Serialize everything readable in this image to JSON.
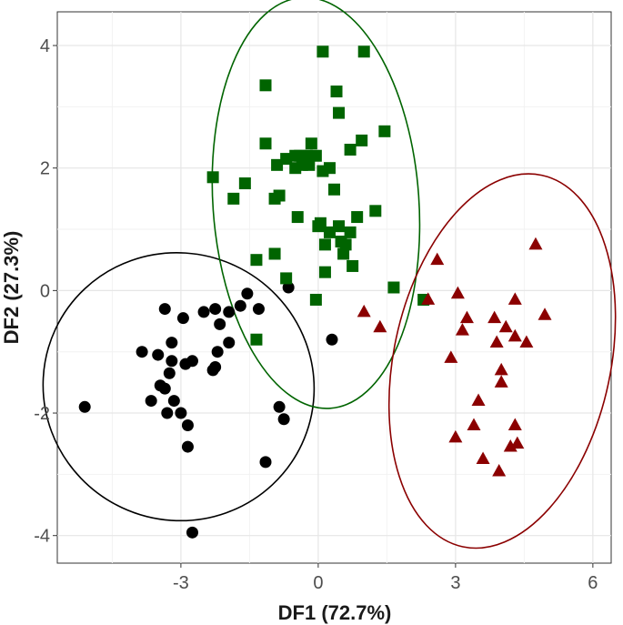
{
  "chart_data": {
    "type": "scatter",
    "xlabel": "DF1 (72.7%)",
    "ylabel": "DF2 (27.3%)",
    "xlim": [
      -5.7,
      6.4
    ],
    "ylim": [
      -4.45,
      4.55
    ],
    "x_ticks": [
      -3,
      0,
      3,
      6
    ],
    "x_tick_labels": [
      "-3",
      "0",
      "3",
      "6"
    ],
    "y_ticks": [
      -4,
      -2,
      0,
      2,
      4
    ],
    "y_tick_labels": [
      "-4",
      "-2",
      "0",
      "2",
      "4"
    ],
    "grid": true,
    "legend": "none",
    "series": [
      {
        "marker": "circle",
        "color": "#000000",
        "ellipse": {
          "cx": -3.05,
          "cy": -1.57,
          "rx": 2.97,
          "ry": 2.18,
          "angle_deg": 25
        },
        "points": [
          [
            -5.1,
            -1.9
          ],
          [
            -3.85,
            -1.0
          ],
          [
            -3.65,
            -1.8
          ],
          [
            -3.5,
            -1.05
          ],
          [
            -3.45,
            -1.55
          ],
          [
            -3.35,
            -0.3
          ],
          [
            -3.35,
            -1.6
          ],
          [
            -3.3,
            -2.0
          ],
          [
            -3.25,
            -1.35
          ],
          [
            -3.2,
            -0.85
          ],
          [
            -3.2,
            -1.15
          ],
          [
            -3.15,
            -1.8
          ],
          [
            -3.0,
            -2.0
          ],
          [
            -2.95,
            -0.45
          ],
          [
            -2.9,
            -1.2
          ],
          [
            -2.85,
            -2.55
          ],
          [
            -2.85,
            -2.2
          ],
          [
            -2.75,
            -1.15
          ],
          [
            -2.75,
            -3.95
          ],
          [
            -2.5,
            -0.35
          ],
          [
            -2.3,
            -1.3
          ],
          [
            -2.25,
            -1.25
          ],
          [
            -2.25,
            -0.3
          ],
          [
            -2.2,
            -1.0
          ],
          [
            -2.15,
            -0.55
          ],
          [
            -1.95,
            -0.35
          ],
          [
            -1.95,
            -0.85
          ],
          [
            -1.7,
            -0.25
          ],
          [
            -1.55,
            -0.05
          ],
          [
            -1.3,
            -0.3
          ],
          [
            -1.15,
            -2.8
          ],
          [
            -0.85,
            -1.9
          ],
          [
            -0.75,
            -2.1
          ],
          [
            -0.65,
            0.05
          ],
          [
            0.3,
            -0.8
          ]
        ]
      },
      {
        "marker": "square",
        "color": "#006400",
        "ellipse": {
          "cx": -0.05,
          "cy": 1.43,
          "rx": 2.25,
          "ry": 3.36,
          "angle_deg": -4
        },
        "points": [
          [
            -2.3,
            1.85
          ],
          [
            -1.85,
            1.5
          ],
          [
            -1.6,
            1.75
          ],
          [
            -1.35,
            0.5
          ],
          [
            -1.35,
            -0.8
          ],
          [
            -1.15,
            3.35
          ],
          [
            -1.15,
            2.4
          ],
          [
            -0.95,
            1.5
          ],
          [
            -0.95,
            0.6
          ],
          [
            -0.9,
            2.05
          ],
          [
            -0.85,
            1.55
          ],
          [
            -0.7,
            2.15
          ],
          [
            -0.7,
            0.2
          ],
          [
            -0.5,
            2.2
          ],
          [
            -0.5,
            2.0
          ],
          [
            -0.45,
            1.2
          ],
          [
            -0.4,
            2.2
          ],
          [
            -0.35,
            2.05
          ],
          [
            -0.3,
            2.1
          ],
          [
            -0.25,
            2.2
          ],
          [
            -0.2,
            2.05
          ],
          [
            -0.15,
            2.4
          ],
          [
            -0.05,
            2.2
          ],
          [
            -0.05,
            -0.15
          ],
          [
            0.0,
            1.05
          ],
          [
            0.05,
            1.1
          ],
          [
            0.1,
            1.95
          ],
          [
            0.1,
            3.9
          ],
          [
            0.15,
            0.75
          ],
          [
            0.15,
            0.3
          ],
          [
            0.25,
            2.0
          ],
          [
            0.25,
            0.95
          ],
          [
            0.35,
            1.65
          ],
          [
            0.4,
            3.25
          ],
          [
            0.45,
            2.9
          ],
          [
            0.45,
            1.05
          ],
          [
            0.5,
            0.8
          ],
          [
            0.55,
            0.6
          ],
          [
            0.6,
            0.75
          ],
          [
            0.7,
            0.95
          ],
          [
            0.75,
            0.4
          ],
          [
            0.7,
            2.3
          ],
          [
            0.85,
            1.2
          ],
          [
            0.95,
            2.45
          ],
          [
            1.0,
            3.9
          ],
          [
            1.25,
            1.3
          ],
          [
            1.45,
            2.6
          ],
          [
            1.65,
            0.05
          ],
          [
            2.3,
            -0.15
          ]
        ]
      },
      {
        "marker": "triangle",
        "color": "#8b0000",
        "ellipse": {
          "cx": 4.02,
          "cy": -1.15,
          "rx": 2.37,
          "ry": 3.1,
          "angle_deg": 12
        },
        "points": [
          [
            1.0,
            -0.35
          ],
          [
            1.35,
            -0.6
          ],
          [
            2.4,
            -0.15
          ],
          [
            2.6,
            0.5
          ],
          [
            2.9,
            -1.1
          ],
          [
            3.0,
            -2.4
          ],
          [
            3.05,
            -0.05
          ],
          [
            3.15,
            -0.65
          ],
          [
            3.25,
            -0.45
          ],
          [
            3.4,
            -2.2
          ],
          [
            3.5,
            -1.8
          ],
          [
            3.6,
            -2.75
          ],
          [
            3.85,
            -0.45
          ],
          [
            3.9,
            -0.85
          ],
          [
            3.95,
            -2.95
          ],
          [
            4.0,
            -1.3
          ],
          [
            4.0,
            -1.5
          ],
          [
            4.1,
            -0.6
          ],
          [
            4.2,
            -2.55
          ],
          [
            4.3,
            -0.15
          ],
          [
            4.3,
            -0.75
          ],
          [
            4.3,
            -2.2
          ],
          [
            4.35,
            -2.5
          ],
          [
            4.55,
            -0.85
          ],
          [
            4.75,
            0.75
          ],
          [
            4.95,
            -0.4
          ]
        ]
      }
    ]
  }
}
